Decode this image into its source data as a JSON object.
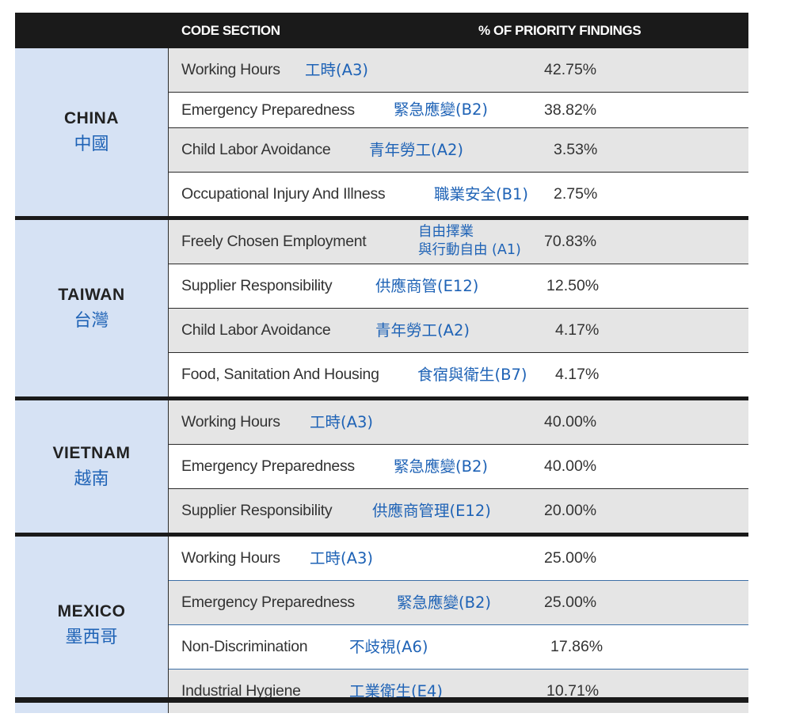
{
  "header": {
    "code_section": "CODE SECTION",
    "pct": "% OF PRIORITY FINDINGS"
  },
  "colors": {
    "header_bg": "#1a1a1a",
    "country_bg": "#d6e2f4",
    "chinese_text": "#1f63b6",
    "alt_row": "#e5e5e5"
  },
  "groups": [
    {
      "name": "CHINA",
      "zh": "中國",
      "rows": [
        {
          "en": "Working Hours",
          "zh": "工時(A3)",
          "pct": "42.75%"
        },
        {
          "en": "Emergency Preparedness",
          "zh": "緊急應變(B2)",
          "pct": "38.82%"
        },
        {
          "en": "Child Labor Avoidance",
          "zh": "青年勞工(A2)",
          "pct": "3.53%"
        },
        {
          "en": "Occupational Injury And Illness",
          "zh": "職業安全(B1)",
          "pct": "2.75%"
        }
      ]
    },
    {
      "name": "TAIWAN",
      "zh": "台灣",
      "rows": [
        {
          "en": "Freely Chosen Employment",
          "zh_line1": "自由擇業",
          "zh_line2": "與行動自由 (A1)",
          "pct": "70.83%"
        },
        {
          "en": "Supplier Responsibility",
          "zh": "供應商管(E12)",
          "pct": "12.50%"
        },
        {
          "en": "Child Labor Avoidance",
          "zh": "青年勞工(A2)",
          "pct": "4.17%"
        },
        {
          "en": "Food, Sanitation And Housing",
          "zh": "食宿與衛生(B7)",
          "pct": "4.17%"
        }
      ]
    },
    {
      "name": "VIETNAM",
      "zh": "越南",
      "rows": [
        {
          "en": "Working Hours",
          "zh": "工時(A3)",
          "pct": "40.00%"
        },
        {
          "en": "Emergency Preparedness",
          "zh": "緊急應變(B2)",
          "pct": "40.00%"
        },
        {
          "en": "Supplier Responsibility",
          "zh": "供應商管理(E12)",
          "pct": "20.00%"
        }
      ]
    },
    {
      "name": "MEXICO",
      "zh": "墨西哥",
      "rows": [
        {
          "en": "Working Hours",
          "zh": "工時(A3)",
          "pct": "25.00%"
        },
        {
          "en": "Emergency Preparedness",
          "zh": "緊急應變(B2)",
          "pct": "25.00%"
        },
        {
          "en": "Non-Discrimination",
          "zh": "不歧視(A6)",
          "pct": "17.86%"
        },
        {
          "en": "Industrial Hygiene",
          "zh": "工業衛生(E4)",
          "pct": "10.71%"
        }
      ]
    }
  ]
}
